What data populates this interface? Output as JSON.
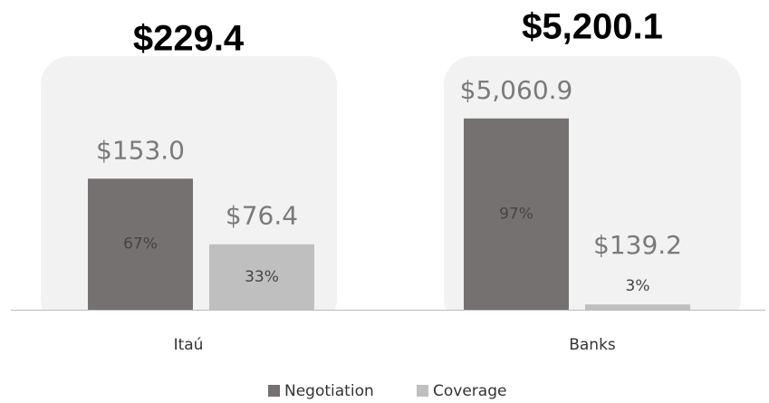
{
  "chart_data": {
    "type": "bar",
    "categories": [
      "Itaú",
      "Banks"
    ],
    "totals": [
      229.4,
      5200.1
    ],
    "total_labels": [
      "$229.4",
      "$5,200.1"
    ],
    "series": [
      {
        "name": "Negotiation",
        "color": "#767171",
        "values": [
          153.0,
          5060.9
        ],
        "value_labels": [
          "$153.0",
          "$5,060.9"
        ],
        "shares": [
          67,
          97
        ],
        "share_labels": [
          "67%",
          "97%"
        ]
      },
      {
        "name": "Coverage",
        "color": "#bfbfbf",
        "values": [
          76.4,
          139.2
        ],
        "value_labels": [
          "$76.4",
          "$139.2"
        ],
        "shares": [
          33,
          3
        ],
        "share_labels": [
          "33%",
          "3%"
        ]
      }
    ],
    "legend": "bottom"
  }
}
